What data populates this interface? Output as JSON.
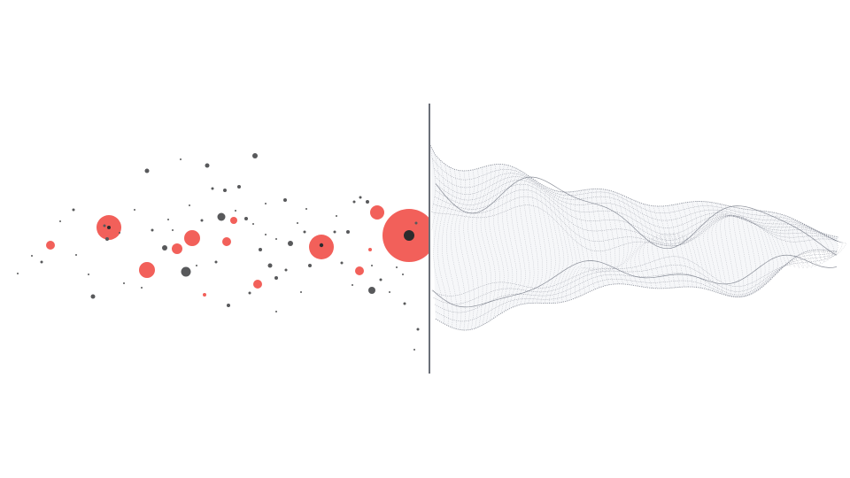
{
  "illustration": {
    "colors": {
      "background": "#ffffff",
      "accent_red": "#f2605a",
      "dot_dark": "#58595b",
      "divider": "#6b6f78",
      "mesh_line": "#6e7380",
      "mesh_fill": "#eef0f4"
    },
    "elements": [
      "scattered-particle-field",
      "vertical-divider",
      "wireframe-wave-mesh"
    ]
  }
}
